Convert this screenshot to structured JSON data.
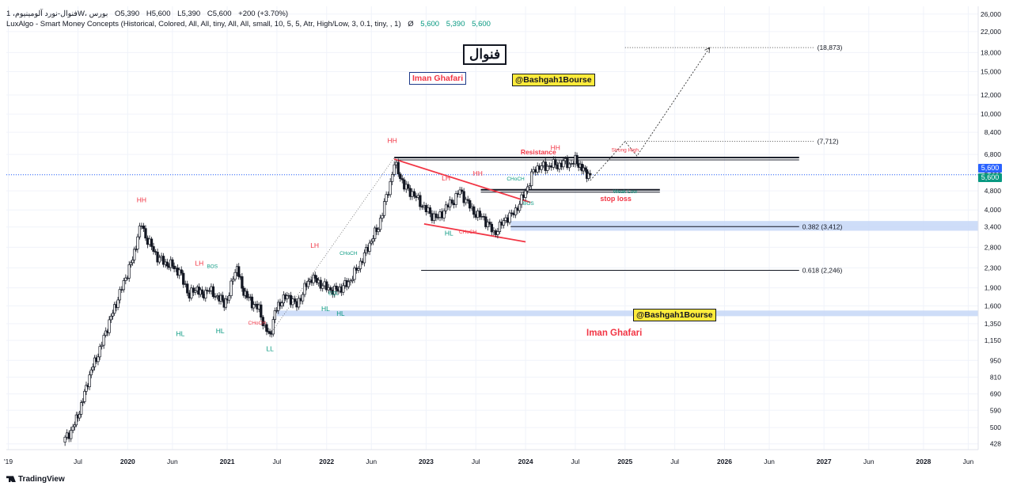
{
  "header": {
    "symbol_line": "فنوال-نورد آلومینیوم، 1W، بورس",
    "ohlc": {
      "O": "5,390",
      "H": "5,600",
      "L": "5,390",
      "C": "5,600",
      "change": "+200 (+3.70%)"
    },
    "indicator": "LuxAlgo - Smart Money Concepts (Historical, Colored, All, All, tiny, All, All, small, 10, 5, 5, Atr, High/Low, 3, 0.1, tiny, , 1)",
    "indicator_symbol": "Ø",
    "indicator_values": [
      "5,600",
      "5,390",
      "5,600"
    ]
  },
  "footer": {
    "brand": "TradingView"
  },
  "colors": {
    "up": "#131722",
    "down": "#131722",
    "bull_label": "#089981",
    "bear_label": "#f23645",
    "last_price": "#2962ff",
    "last_price_green": "#089981",
    "fib_zone": "#c5d7f7",
    "trendline": "#f23645"
  },
  "chart_data": {
    "type": "candlestick",
    "timeframe": "1W",
    "scale": "log",
    "y_ticks": [
      "26,000",
      "22,000",
      "18,000",
      "15,000",
      "12,000",
      "10,000",
      "8,400",
      "6,800",
      "5,600",
      "4,800",
      "4,000",
      "3,400",
      "2,800",
      "2,300",
      "1,900",
      "1,600",
      "1,350",
      "1,150",
      "950",
      "810",
      "690",
      "590",
      "500",
      "428"
    ],
    "y_tick_values": [
      26000,
      22000,
      18000,
      15000,
      12000,
      10000,
      8400,
      6800,
      5600,
      4800,
      4000,
      3400,
      2800,
      2300,
      1900,
      1600,
      1350,
      1150,
      950,
      810,
      690,
      590,
      500,
      428
    ],
    "x_ticks": [
      "'19",
      "Jul",
      "2020",
      "Jun",
      "2021",
      "Jul",
      "2022",
      "Jun",
      "2023",
      "Jul",
      "2024",
      "Jul",
      "2025",
      "Jul",
      "2026",
      "Jun",
      "2027",
      "Jun",
      "2028",
      "Jun"
    ],
    "x_tick_dates": [
      2019.8,
      2020.5,
      2021.0,
      2021.45,
      2022.0,
      2022.5,
      2023.0,
      2023.45,
      2024.0,
      2024.5,
      2025.0,
      2025.5,
      2026.0,
      2026.5,
      2027.0,
      2027.45,
      2028.0,
      2028.45,
      2029.0,
      2029.45
    ],
    "last_price_labels": [
      "5,600",
      "5,600"
    ],
    "price_path": [
      [
        2020.35,
        435
      ],
      [
        2020.45,
        500
      ],
      [
        2020.5,
        560
      ],
      [
        2020.55,
        650
      ],
      [
        2020.6,
        780
      ],
      [
        2020.65,
        900
      ],
      [
        2020.72,
        1050
      ],
      [
        2020.78,
        1250
      ],
      [
        2020.85,
        1500
      ],
      [
        2020.92,
        1800
      ],
      [
        2020.98,
        2100
      ],
      [
        2021.05,
        2500
      ],
      [
        2021.1,
        3100
      ],
      [
        2021.14,
        3500
      ],
      [
        2021.18,
        3100
      ],
      [
        2021.22,
        2900
      ],
      [
        2021.3,
        2550
      ],
      [
        2021.38,
        2400
      ],
      [
        2021.45,
        2350
      ],
      [
        2021.52,
        2200
      ],
      [
        2021.58,
        1950
      ],
      [
        2021.62,
        1750
      ],
      [
        2021.66,
        1850
      ],
      [
        2021.7,
        1900
      ],
      [
        2021.75,
        1750
      ],
      [
        2021.8,
        1880
      ],
      [
        2021.86,
        1800
      ],
      [
        2021.92,
        1720
      ],
      [
        2021.97,
        1650
      ],
      [
        2022.02,
        1750
      ],
      [
        2022.06,
        2150
      ],
      [
        2022.1,
        2300
      ],
      [
        2022.15,
        1900
      ],
      [
        2022.2,
        1750
      ],
      [
        2022.25,
        1650
      ],
      [
        2022.32,
        1550
      ],
      [
        2022.38,
        1300
      ],
      [
        2022.43,
        1200
      ],
      [
        2022.48,
        1500
      ],
      [
        2022.55,
        1700
      ],
      [
        2022.62,
        1750
      ],
      [
        2022.7,
        1600
      ],
      [
        2022.78,
        1900
      ],
      [
        2022.85,
        2100
      ],
      [
        2022.92,
        2000
      ],
      [
        2023.0,
        1900
      ],
      [
        2023.08,
        1850
      ],
      [
        2023.15,
        1900
      ],
      [
        2023.22,
        2000
      ],
      [
        2023.3,
        2250
      ],
      [
        2023.38,
        2600
      ],
      [
        2023.45,
        3000
      ],
      [
        2023.52,
        3400
      ],
      [
        2023.58,
        4200
      ],
      [
        2023.64,
        5200
      ],
      [
        2023.68,
        6200
      ],
      [
        2023.72,
        5800
      ],
      [
        2023.78,
        5000
      ],
      [
        2023.86,
        4700
      ],
      [
        2023.94,
        4300
      ],
      [
        2024.0,
        4000
      ],
      [
        2024.06,
        3800
      ],
      [
        2024.12,
        3700
      ],
      [
        2024.2,
        4100
      ],
      [
        2024.28,
        4400
      ],
      [
        2024.34,
        4800
      ],
      [
        2024.4,
        4400
      ],
      [
        2024.46,
        4000
      ],
      [
        2024.52,
        3800
      ],
      [
        2024.58,
        3700
      ],
      [
        2024.64,
        3400
      ],
      [
        2024.68,
        3200
      ],
      [
        2024.74,
        3400
      ],
      [
        2024.8,
        3700
      ],
      [
        2024.86,
        3800
      ],
      [
        2024.9,
        4000
      ],
      [
        2024.96,
        4400
      ],
      [
        2025.02,
        5000
      ],
      [
        2025.08,
        5800
      ],
      [
        2025.14,
        6100
      ],
      [
        2025.2,
        6000
      ],
      [
        2025.26,
        6200
      ],
      [
        2025.32,
        6100
      ],
      [
        2025.38,
        6300
      ],
      [
        2025.44,
        6200
      ],
      [
        2025.5,
        6400
      ],
      [
        2025.55,
        6100
      ],
      [
        2025.6,
        5700
      ],
      [
        2025.65,
        5600
      ]
    ],
    "levels": [
      {
        "label": "Resistance",
        "price": 6600,
        "from": 2023.68,
        "to": 2027.75
      },
      {
        "label": "(18,873)",
        "price": 18873,
        "from": 2026.0,
        "to": 2027.9
      },
      {
        "label": "(7,712)",
        "price": 7712,
        "from": 2026.0,
        "to": 2027.9
      },
      {
        "label": "0.382 (3,412)",
        "price": 3412,
        "from": 2024.85,
        "to": 2027.75
      },
      {
        "label": "0.618 (2,246)",
        "price": 2246,
        "from": 2023.95,
        "to": 2027.75
      },
      {
        "label": "stop loss",
        "price": 4850,
        "from": 2024.55,
        "to": 2026.35
      }
    ],
    "zones": [
      {
        "label": "HL",
        "low": 1450,
        "high": 1530,
        "from": 2022.5,
        "to": 2029.8
      },
      {
        "label": "0.382 zone",
        "low": 3280,
        "high": 3600,
        "from": 2024.85,
        "to": 2029.8
      }
    ],
    "structure_labels": [
      {
        "text": "HH",
        "type": "bear",
        "t": 2021.14,
        "p": 4300
      },
      {
        "text": "LH",
        "type": "bear",
        "t": 2021.72,
        "p": 2350
      },
      {
        "text": "BOS",
        "type": "bull",
        "t": 2021.85,
        "p": 2300
      },
      {
        "text": "HL",
        "type": "bull",
        "t": 2021.53,
        "p": 1200
      },
      {
        "text": "HL",
        "type": "bull",
        "t": 2021.93,
        "p": 1230
      },
      {
        "text": "CHoCH",
        "type": "bear",
        "t": 2022.3,
        "p": 1340
      },
      {
        "text": "LL",
        "type": "bull",
        "t": 2022.43,
        "p": 1040
      },
      {
        "text": "LH",
        "type": "bear",
        "t": 2022.88,
        "p": 2790
      },
      {
        "text": "CHoCH",
        "type": "bull",
        "t": 2023.22,
        "p": 2600
      },
      {
        "text": "EQL",
        "type": "bull",
        "t": 2023.07,
        "p": 1780
      },
      {
        "text": "HL",
        "type": "bull",
        "t": 2022.99,
        "p": 1520
      },
      {
        "text": "HH",
        "type": "bear",
        "t": 2023.66,
        "p": 7600
      },
      {
        "text": "LH",
        "type": "bear",
        "t": 2024.2,
        "p": 5300
      },
      {
        "text": "HH",
        "type": "bear",
        "t": 2024.52,
        "p": 5550
      },
      {
        "text": "CHoCH",
        "type": "bull",
        "t": 2024.9,
        "p": 5300
      },
      {
        "text": "HL",
        "type": "bull",
        "t": 2024.23,
        "p": 3130
      },
      {
        "text": "CHoCH",
        "type": "bear",
        "t": 2024.42,
        "p": 3190
      },
      {
        "text": "BOS",
        "type": "bull",
        "t": 2025.03,
        "p": 4200
      },
      {
        "text": "HH",
        "type": "bear",
        "t": 2025.3,
        "p": 7100
      },
      {
        "text": "Strong High",
        "type": "bear",
        "t": 2026.0,
        "p": 7000
      },
      {
        "text": "Weak Low",
        "type": "bull",
        "t": 2026.0,
        "p": 4700
      }
    ],
    "trendlines": [
      {
        "from": [
          2023.68,
          6500
        ],
        "to": [
          2025.05,
          4300
        ]
      },
      {
        "from": [
          2023.98,
          3500
        ],
        "to": [
          2025.0,
          2950
        ]
      }
    ],
    "projection": [
      [
        2025.65,
        5300
      ],
      [
        2026.0,
        7700
      ],
      [
        2026.12,
        6700
      ],
      [
        2026.85,
        18873
      ]
    ],
    "annotations": [
      {
        "text": "فنوال",
        "style": "title-box"
      },
      {
        "text": "Iman Ghafari",
        "style": "outline-red"
      },
      {
        "text": "@Bashgah1Bourse",
        "style": "yellow"
      },
      {
        "text": "@Bashgah1Bourse",
        "style": "yellow"
      },
      {
        "text": "Iman Ghafari",
        "style": "plain-red"
      }
    ]
  }
}
